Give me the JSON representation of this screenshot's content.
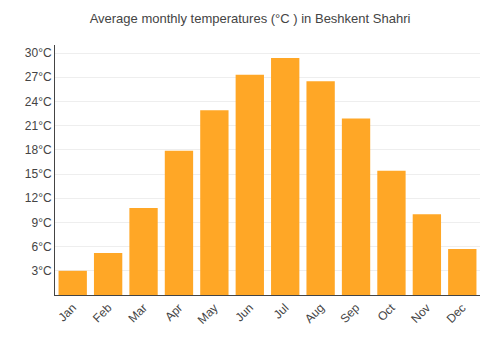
{
  "chart_data": {
    "type": "bar",
    "title": "Average monthly temperatures (°C ) in Beshkent Shahri",
    "categories": [
      "Jan",
      "Feb",
      "Mar",
      "Apr",
      "May",
      "Jun",
      "Jul",
      "Aug",
      "Sep",
      "Oct",
      "Nov",
      "Dec"
    ],
    "values": [
      3.0,
      5.2,
      10.8,
      17.9,
      22.9,
      27.3,
      29.4,
      26.5,
      21.9,
      15.4,
      10.0,
      5.7
    ],
    "color": "#FFA726",
    "ylim": [
      0,
      31
    ],
    "yticks": [
      {
        "value": 3,
        "label": "3°C"
      },
      {
        "value": 6,
        "label": "6°C"
      },
      {
        "value": 9,
        "label": "9°C"
      },
      {
        "value": 12,
        "label": "12°C"
      },
      {
        "value": 15,
        "label": "15°C"
      },
      {
        "value": 18,
        "label": "18°C"
      },
      {
        "value": 21,
        "label": "21°C"
      },
      {
        "value": 24,
        "label": "24°C"
      },
      {
        "value": 27,
        "label": "27°C"
      },
      {
        "value": 30,
        "label": "30°C"
      }
    ],
    "grid": true
  }
}
